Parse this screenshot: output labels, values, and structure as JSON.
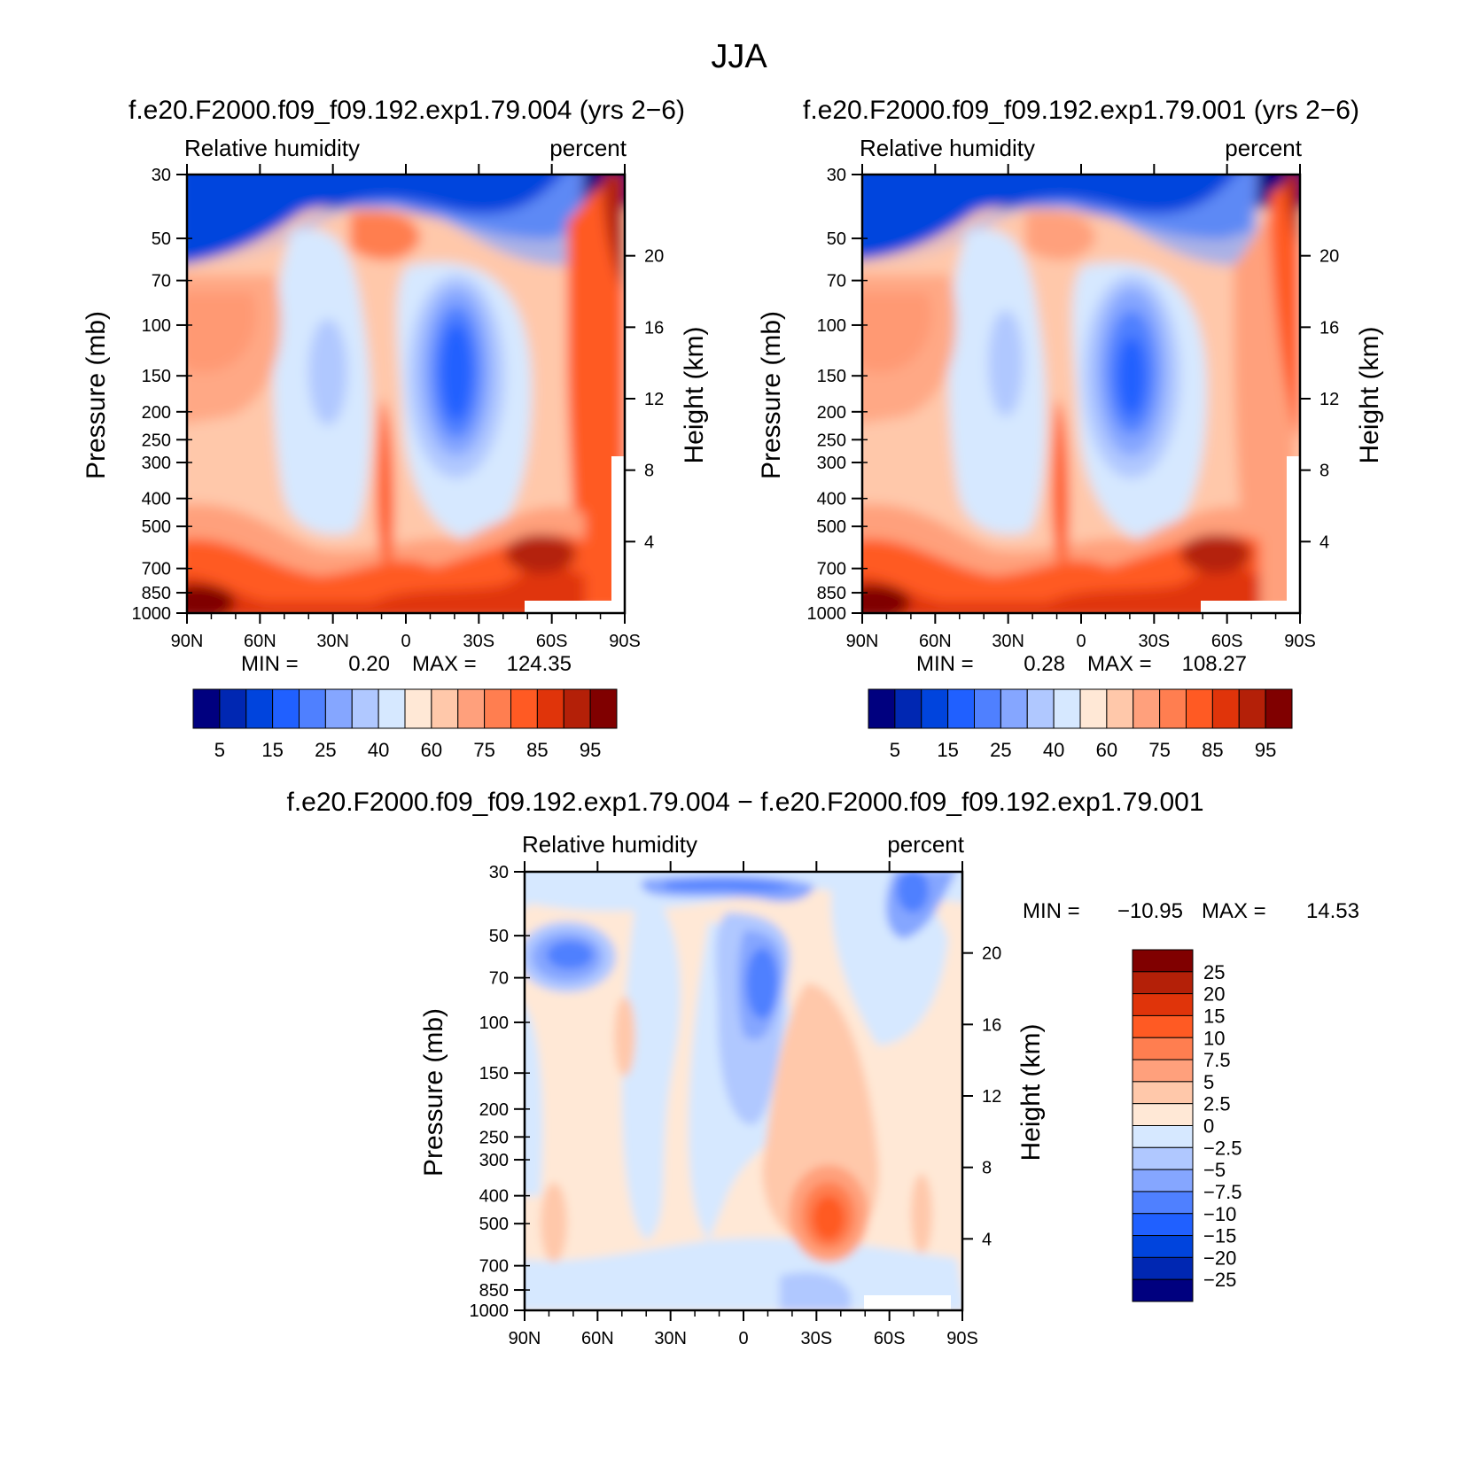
{
  "title": "JJA",
  "colors": {
    "full": [
      "#00007f",
      "#0027b2",
      "#0044dd",
      "#2060ff",
      "#4f80ff",
      "#85a6ff",
      "#b0c8ff",
      "#d6e8ff",
      "#ffe8d6",
      "#ffc8aa",
      "#ffa07c",
      "#ff7e50",
      "#ff5a23",
      "#e0340a",
      "#b42008",
      "#800000"
    ],
    "diff_low_to_high": [
      "#00007f",
      "#0027b2",
      "#0044dd",
      "#2060ff",
      "#4f80ff",
      "#85a6ff",
      "#b0c8ff",
      "#d6e8ff",
      "#ffe8d6",
      "#ffc8aa",
      "#ffa07c",
      "#ff7e50",
      "#ff5a23",
      "#e0340a",
      "#b42008",
      "#800000"
    ]
  },
  "chart_data": [
    {
      "type": "heatmap",
      "name": "panel-1",
      "title": "f.e20.F2000.f09_f09.192.exp1.79.004 (yrs 2−6)",
      "left_label": "Relative humidity",
      "right_label": "percent",
      "ylabel": "Pressure (mb)",
      "y2label": "Height (km)",
      "xticks": [
        "90N",
        "60N",
        "30N",
        "0",
        "30S",
        "60S",
        "90S"
      ],
      "yticks": [
        "30",
        "50",
        "70",
        "100",
        "150",
        "200",
        "250",
        "300",
        "400",
        "500",
        "700",
        "850",
        "1000"
      ],
      "y2ticks": [
        "20",
        "16",
        "12",
        "8",
        "4"
      ],
      "min_label": "MIN =",
      "min_value": "0.20",
      "max_label": "MAX =",
      "max_value": "124.35",
      "colorbar_labels": [
        "5",
        "15",
        "25",
        "40",
        "60",
        "75",
        "85",
        "95"
      ]
    },
    {
      "type": "heatmap",
      "name": "panel-2",
      "title": "f.e20.F2000.f09_f09.192.exp1.79.001 (yrs 2−6)",
      "left_label": "Relative humidity",
      "right_label": "percent",
      "ylabel": "Pressure (mb)",
      "y2label": "Height (km)",
      "xticks": [
        "90N",
        "60N",
        "30N",
        "0",
        "30S",
        "60S",
        "90S"
      ],
      "yticks": [
        "30",
        "50",
        "70",
        "100",
        "150",
        "200",
        "250",
        "300",
        "400",
        "500",
        "700",
        "850",
        "1000"
      ],
      "y2ticks": [
        "20",
        "16",
        "12",
        "8",
        "4"
      ],
      "min_label": "MIN =",
      "min_value": "0.28",
      "max_label": "MAX =",
      "max_value": "108.27",
      "colorbar_labels": [
        "5",
        "15",
        "25",
        "40",
        "60",
        "75",
        "85",
        "95"
      ]
    },
    {
      "type": "heatmap",
      "name": "panel-diff",
      "title": "f.e20.F2000.f09_f09.192.exp1.79.004 − f.e20.F2000.f09_f09.192.exp1.79.001",
      "left_label": "Relative humidity",
      "right_label": "percent",
      "ylabel": "Pressure (mb)",
      "y2label": "Height (km)",
      "xticks": [
        "90N",
        "60N",
        "30N",
        "0",
        "30S",
        "60S",
        "90S"
      ],
      "yticks": [
        "30",
        "50",
        "70",
        "100",
        "150",
        "200",
        "250",
        "300",
        "400",
        "500",
        "700",
        "850",
        "1000"
      ],
      "y2ticks": [
        "20",
        "16",
        "12",
        "8",
        "4"
      ],
      "min_label": "MIN =",
      "min_value": "−10.95",
      "max_label": "MAX =",
      "max_value": "14.53",
      "colorbar_labels": [
        "25",
        "20",
        "15",
        "10",
        "7.5",
        "5",
        "2.5",
        "0",
        "−2.5",
        "−5",
        "−7.5",
        "−10",
        "−15",
        "−20",
        "−25"
      ]
    }
  ]
}
